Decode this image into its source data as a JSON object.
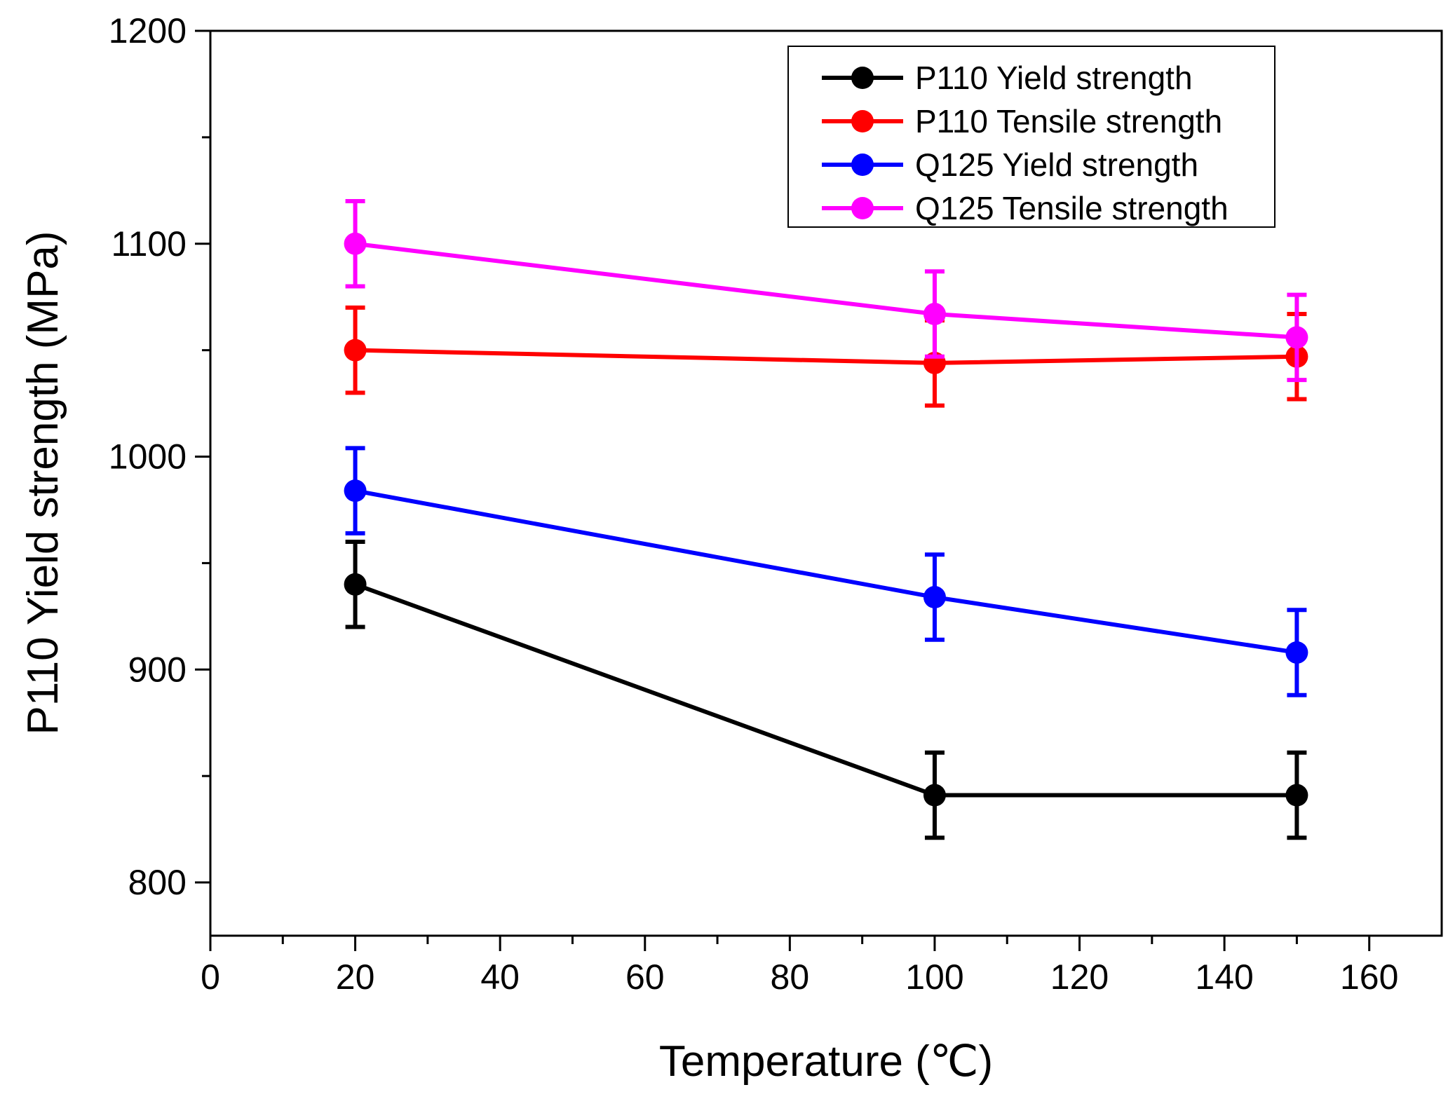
{
  "chart_data": {
    "type": "line",
    "title": "",
    "xlabel": "Temperature (℃)",
    "ylabel": "P110 Yield strength (MPa)",
    "xlim": [
      0,
      170
    ],
    "ylim": [
      775,
      1200
    ],
    "x_major_ticks": [
      0,
      20,
      40,
      60,
      80,
      100,
      120,
      140,
      160
    ],
    "x_tick_labels": [
      "0",
      "20",
      "40",
      "60",
      "80",
      "100",
      "120",
      "140",
      "160"
    ],
    "y_major_ticks": [
      800,
      900,
      1000,
      1100,
      1200
    ],
    "y_tick_labels": [
      "800",
      "900",
      "1000",
      "1100",
      "1200"
    ],
    "grid": false,
    "legend_position": "top-right",
    "series": [
      {
        "name": "P110 Yield strength",
        "color": "#000000",
        "x": [
          20,
          100,
          150
        ],
        "values": [
          940,
          841,
          841
        ],
        "error": [
          20,
          20,
          20
        ]
      },
      {
        "name": "P110 Tensile strength",
        "color": "#ff0000",
        "x": [
          20,
          100,
          150
        ],
        "values": [
          1050,
          1044,
          1047
        ],
        "error": [
          20,
          20,
          20
        ]
      },
      {
        "name": "Q125 Yield strength",
        "color": "#0000ff",
        "x": [
          20,
          100,
          150
        ],
        "values": [
          984,
          934,
          908
        ],
        "error": [
          20,
          20,
          20
        ]
      },
      {
        "name": "Q125 Tensile strength",
        "color": "#ff00ff",
        "x": [
          20,
          100,
          150
        ],
        "values": [
          1100,
          1067,
          1056
        ],
        "error": [
          20,
          20,
          20
        ]
      }
    ]
  }
}
